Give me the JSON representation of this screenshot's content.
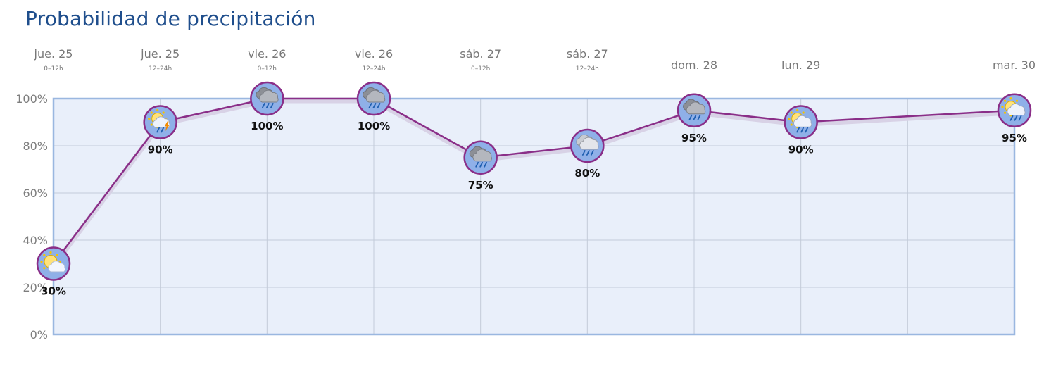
{
  "title": "Probabilidad de precipitación",
  "colors": {
    "title": "#1f4e8c",
    "plot_bg": "#e9effa",
    "plot_border": "#9ab7e0",
    "grid": "#c3cbd9",
    "line": "#8a2e88",
    "marker_border": "#8a2e88",
    "marker_fill": "#8fb0e8"
  },
  "chart_data": {
    "type": "line",
    "title": "Probabilidad de precipitación",
    "xlabel": "",
    "ylabel": "",
    "ylim": [
      0,
      100
    ],
    "y_ticks": [
      "0%",
      "20%",
      "40%",
      "60%",
      "80%",
      "100%"
    ],
    "grid": true,
    "points": [
      {
        "day": "jue. 25",
        "period": "0–12h",
        "value": 30,
        "label": "30%",
        "icon": "partly-cloudy-sun-icon"
      },
      {
        "day": "jue. 25",
        "period": "12–24h",
        "value": 90,
        "label": "90%",
        "icon": "sun-cloud-thunderstorm-icon"
      },
      {
        "day": "vie. 26",
        "period": "0–12h",
        "value": 100,
        "label": "100%",
        "icon": "heavy-rain-cloud-icon"
      },
      {
        "day": "vie. 26",
        "period": "12–24h",
        "value": 100,
        "label": "100%",
        "icon": "heavy-rain-cloud-icon"
      },
      {
        "day": "sáb. 27",
        "period": "0–12h",
        "value": 75,
        "label": "75%",
        "icon": "heavy-rain-cloud-icon"
      },
      {
        "day": "sáb. 27",
        "period": "12–24h",
        "value": 80,
        "label": "80%",
        "icon": "light-rain-cloud-icon"
      },
      {
        "day": "dom. 28",
        "period": "",
        "value": 95,
        "label": "95%",
        "icon": "heavy-rain-cloud-icon"
      },
      {
        "day": "lun. 29",
        "period": "",
        "value": 90,
        "label": "90%",
        "icon": "sun-cloud-rain-icon"
      },
      {
        "day": "mar. 30",
        "period": "",
        "value": 95,
        "label": "95%",
        "icon": "sun-cloud-rain-icon"
      }
    ]
  }
}
